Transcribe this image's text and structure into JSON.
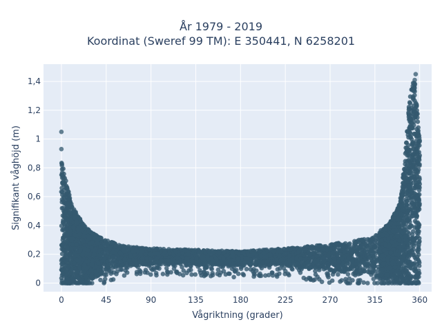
{
  "chart_data": {
    "type": "scatter",
    "title": "År 1979 - 2019",
    "subtitle": "Koordinat (Sweref 99 TM): E 350441, N 6258201",
    "xlabel": "Vågriktning (grader)",
    "ylabel": "Signifikant våghöjd (m)",
    "xlim": [
      -18,
      372
    ],
    "ylim": [
      -0.06,
      1.52
    ],
    "xticks": [
      0,
      45,
      90,
      135,
      180,
      225,
      270,
      315,
      360
    ],
    "xtick_labels": [
      "0",
      "45",
      "90",
      "135",
      "180",
      "225",
      "270",
      "315",
      "360"
    ],
    "yticks": [
      0,
      0.2,
      0.4,
      0.6,
      0.8,
      1,
      1.2,
      1.4
    ],
    "ytick_labels": [
      "0",
      "0,2",
      "0,4",
      "0,6",
      "0,8",
      "1",
      "1,2",
      "1,4"
    ],
    "grid": true,
    "marker_color": "#34596f",
    "plot_bg": "#e5ecf6",
    "envelope": {
      "direction": [
        0,
        10,
        20,
        30,
        45,
        60,
        90,
        135,
        180,
        225,
        270,
        300,
        315,
        330,
        340,
        345,
        350,
        355,
        360
      ],
      "max_height": [
        0.85,
        0.55,
        0.43,
        0.35,
        0.3,
        0.26,
        0.24,
        0.23,
        0.22,
        0.24,
        0.27,
        0.3,
        0.33,
        0.42,
        0.55,
        0.85,
        1.3,
        1.45,
        0.98
      ],
      "min_height": [
        0.0,
        0.0,
        0.0,
        0.02,
        0.08,
        0.12,
        0.13,
        0.13,
        0.12,
        0.12,
        0.08,
        0.06,
        0.04,
        0.02,
        0.0,
        0.0,
        0.0,
        0.0,
        0.0
      ]
    },
    "outliers": [
      {
        "x": 0,
        "y": 1.05
      },
      {
        "x": 0,
        "y": 0.93
      },
      {
        "x": 356,
        "y": 1.45
      },
      {
        "x": 355,
        "y": 1.41
      },
      {
        "x": 357,
        "y": 1.23
      },
      {
        "x": 360,
        "y": 0.99
      }
    ]
  }
}
